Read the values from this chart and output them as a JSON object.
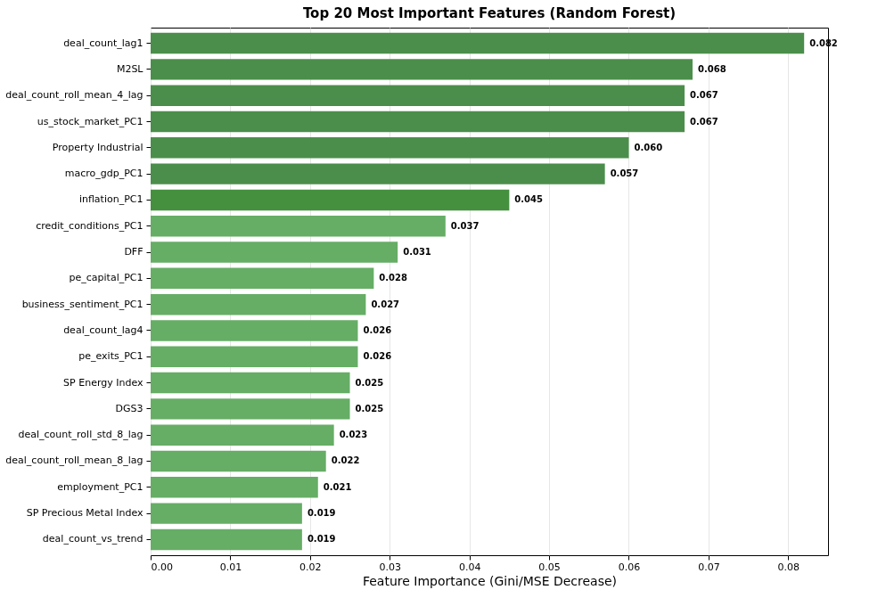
{
  "chart_data": {
    "type": "bar",
    "orientation": "horizontal",
    "title": "Top 20 Most Important Features (Random Forest)",
    "xlabel": "Feature Importance (Gini/MSE Decrease)",
    "categories": [
      "deal_count_lag1",
      "M2SL",
      "deal_count_roll_mean_4_lag",
      "us_stock_market_PC1",
      "Property Industrial",
      "macro_gdp_PC1",
      "inflation_PC1",
      "credit_conditions_PC1",
      "DFF",
      "pe_capital_PC1",
      "business_sentiment_PC1",
      "deal_count_lag4",
      "pe_exits_PC1",
      "SP Energy Index",
      "DGS3",
      "deal_count_roll_std_8_lag",
      "deal_count_roll_mean_8_lag",
      "employment_PC1",
      "SP Precious Metal Index",
      "deal_count_vs_trend"
    ],
    "values": [
      0.082,
      0.068,
      0.067,
      0.067,
      0.06,
      0.057,
      0.045,
      0.037,
      0.031,
      0.028,
      0.027,
      0.026,
      0.026,
      0.025,
      0.025,
      0.023,
      0.022,
      0.021,
      0.019,
      0.019
    ],
    "value_labels": [
      "0.082",
      "0.068",
      "0.067",
      "0.067",
      "0.060",
      "0.057",
      "0.045",
      "0.037",
      "0.031",
      "0.028",
      "0.027",
      "0.026",
      "0.026",
      "0.025",
      "0.025",
      "0.023",
      "0.022",
      "0.021",
      "0.019",
      "0.019"
    ],
    "colors": [
      "#4b8e4b",
      "#4b8e4b",
      "#4b8e4b",
      "#4b8e4b",
      "#4b8e4b",
      "#4b8e4b",
      "#45903f",
      "#66ad66",
      "#66ad66",
      "#66ad66",
      "#66ad66",
      "#66ad66",
      "#66ad66",
      "#66ad66",
      "#66ad66",
      "#66ad66",
      "#66ad66",
      "#66ad66",
      "#66ad66",
      "#66ad66"
    ],
    "xlim": [
      0,
      0.085
    ],
    "xticks": [
      {
        "value": 0,
        "label": "0.00"
      },
      0.01,
      0.02,
      0.03,
      0.04,
      0.05,
      0.06,
      0.07,
      0.08
    ],
    "grid": "x"
  }
}
